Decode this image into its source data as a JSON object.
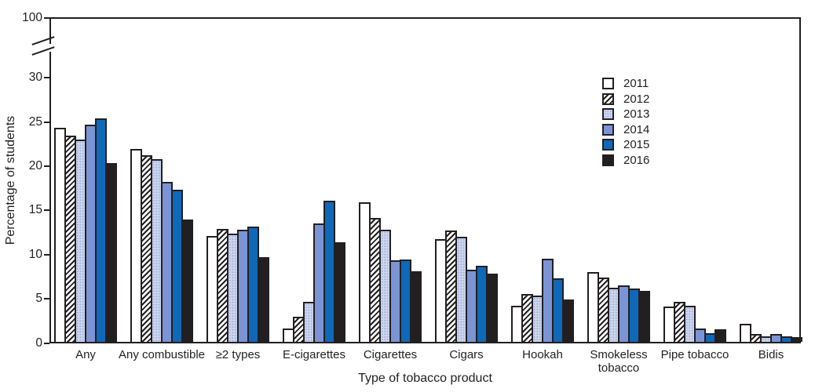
{
  "chart_data": {
    "type": "bar",
    "title": "",
    "ylabel": "Percentage of students",
    "xlabel": "Type of tobacco product",
    "ylim": [
      0,
      30
    ],
    "y_axis_break": {
      "between": [
        30,
        100
      ],
      "top_tick": 100
    },
    "yticks": [
      0,
      5,
      10,
      15,
      20,
      25,
      30,
      100
    ],
    "grid": false,
    "legend_position": "upper-right-inside",
    "categories": [
      "Any",
      "Any combustible",
      "≥2 types",
      "E-cigarettes",
      "Cigarettes",
      "Cigars",
      "Hookah",
      "Smokeless\ntobacco",
      "Pipe tobacco",
      "Bidis"
    ],
    "series": [
      {
        "name": "2011",
        "pattern": "solid",
        "fill": "#ffffff",
        "values": [
          24.2,
          21.8,
          12.0,
          1.5,
          15.8,
          11.6,
          4.1,
          7.9,
          4.0,
          2.0
        ]
      },
      {
        "name": "2012",
        "pattern": "hatch",
        "fill": "#ffffff",
        "values": [
          23.3,
          21.1,
          12.8,
          2.8,
          14.0,
          12.6,
          5.4,
          7.3,
          4.5,
          0.9
        ]
      },
      {
        "name": "2013",
        "pattern": "dots",
        "fill": "#cdd6ee",
        "values": [
          22.9,
          20.7,
          12.2,
          4.5,
          12.7,
          11.9,
          5.2,
          6.1,
          4.1,
          0.6
        ]
      },
      {
        "name": "2014",
        "pattern": "solid",
        "fill": "#7b94d6",
        "values": [
          24.6,
          18.1,
          12.7,
          13.4,
          9.2,
          8.2,
          9.4,
          6.4,
          1.5,
          0.9
        ]
      },
      {
        "name": "2015",
        "pattern": "solid",
        "fill": "#0f68b8",
        "values": [
          25.3,
          17.2,
          13.0,
          16.0,
          9.3,
          8.6,
          7.2,
          6.0,
          1.0,
          0.6
        ]
      },
      {
        "name": "2016",
        "pattern": "solid",
        "fill": "#231f20",
        "values": [
          20.2,
          13.8,
          9.6,
          11.3,
          8.0,
          7.7,
          4.8,
          5.8,
          1.4,
          0.5
        ]
      }
    ],
    "colors": {
      "axis": "#231f20",
      "bar_outline": "#231f20"
    }
  }
}
